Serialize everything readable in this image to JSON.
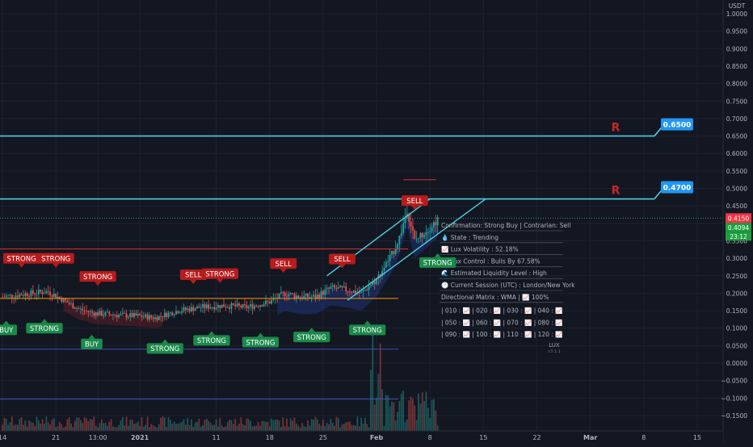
{
  "chart_data": {
    "type": "candlestick",
    "quote_unit": "USDT",
    "price_axis": {
      "min": -0.17,
      "max": 1.02,
      "ticks": [
        1.0,
        0.95,
        0.9,
        0.85,
        0.8,
        0.75,
        0.7,
        0.65,
        0.6,
        0.55,
        0.5,
        0.45,
        0.4,
        0.35,
        0.3,
        0.25,
        0.2,
        0.15,
        0.1,
        0.05,
        0.0,
        -0.05,
        -0.1,
        -0.15
      ],
      "tick_labels": [
        "1.0000",
        "0.9500",
        "0.9000",
        "0.8500",
        "0.8000",
        "0.7500",
        "0.7000",
        "0.6500",
        "0.6000",
        "0.5500",
        "0.5000",
        "0.4500",
        "0.4000",
        "0.3500",
        "0.3000",
        "0.2500",
        "0.2000",
        "0.1500",
        "0.1000",
        "0.0500",
        "0.0000",
        "−0.0500",
        "−0.1000",
        "−0.1500"
      ]
    },
    "time_axis": {
      "labels": [
        {
          "label": "14",
          "day": 0
        },
        {
          "label": "21",
          "day": 7
        },
        {
          "label": "13:00",
          "day": 12.5
        },
        {
          "label": "2021",
          "day": 18
        },
        {
          "label": "11",
          "day": 28
        },
        {
          "label": "18",
          "day": 35
        },
        {
          "label": "25",
          "day": 42
        },
        {
          "label": "Feb",
          "day": 49
        },
        {
          "label": "8",
          "day": 56
        },
        {
          "label": "15",
          "day": 63
        },
        {
          "label": "22",
          "day": 70
        },
        {
          "label": "Mar",
          "day": 77
        },
        {
          "label": "8",
          "day": 84
        },
        {
          "label": "15",
          "day": 91
        }
      ],
      "range": [
        0,
        99
      ]
    },
    "price_path": [
      [
        0,
        0.19
      ],
      [
        3,
        0.198
      ],
      [
        6,
        0.205
      ],
      [
        8,
        0.18
      ],
      [
        10,
        0.155
      ],
      [
        12,
        0.143
      ],
      [
        15,
        0.138
      ],
      [
        18,
        0.135
      ],
      [
        20,
        0.13
      ],
      [
        23,
        0.15
      ],
      [
        26,
        0.16
      ],
      [
        29,
        0.165
      ],
      [
        32,
        0.16
      ],
      [
        35,
        0.175
      ],
      [
        37,
        0.2
      ],
      [
        39,
        0.19
      ],
      [
        41,
        0.19
      ],
      [
        43,
        0.215
      ],
      [
        45,
        0.21
      ],
      [
        47,
        0.2
      ],
      [
        49,
        0.24
      ],
      [
        51,
        0.31
      ],
      [
        52,
        0.36
      ],
      [
        53,
        0.44
      ],
      [
        54,
        0.35
      ],
      [
        55,
        0.37
      ],
      [
        56,
        0.39
      ],
      [
        57,
        0.41
      ]
    ],
    "horizontal_levels": [
      {
        "price": 0.65,
        "color": "#4dd0e1",
        "label": "0.6500"
      },
      {
        "price": 0.47,
        "color": "#4dd0e1",
        "label": "0.4700"
      },
      {
        "price": 0.327,
        "color": "#d32f2f"
      },
      {
        "price": 0.185,
        "color": "#ff9800"
      },
      {
        "price": 0.04,
        "color": "#3f51b5"
      },
      {
        "price": -0.103,
        "color": "#3f51b5"
      }
    ],
    "resistance_marks": [
      "R",
      "R"
    ],
    "current_prices": [
      "0.4150",
      "0.4094"
    ],
    "countdown": "23:12",
    "signals": [
      {
        "type": "STRONG",
        "side": "sell",
        "day": 2.5,
        "price": 0.3
      },
      {
        "type": "STRONG",
        "side": "sell",
        "day": 7,
        "price": 0.3
      },
      {
        "type": "STRONG",
        "side": "sell",
        "day": 12.5,
        "price": 0.248
      },
      {
        "type": "SELL",
        "side": "sell",
        "day": 25,
        "price": 0.253
      },
      {
        "type": "STRONG",
        "side": "sell",
        "day": 28.5,
        "price": 0.256
      },
      {
        "type": "SELL",
        "side": "sell",
        "day": 36.8,
        "price": 0.285
      },
      {
        "type": "SELL",
        "side": "sell",
        "day": 44.5,
        "price": 0.298
      },
      {
        "type": "SELL",
        "side": "sell",
        "day": 54,
        "price": 0.465
      },
      {
        "type": "BUY",
        "side": "buy",
        "day": 0.5,
        "price": 0.095
      },
      {
        "type": "STRONG",
        "side": "buy",
        "day": 5.5,
        "price": 0.1
      },
      {
        "type": "BUY",
        "side": "buy",
        "day": 11.7,
        "price": 0.055
      },
      {
        "type": "STRONG",
        "side": "buy",
        "day": 21.3,
        "price": 0.042
      },
      {
        "type": "STRONG",
        "side": "buy",
        "day": 27.4,
        "price": 0.065
      },
      {
        "type": "STRONG",
        "side": "buy",
        "day": 33.8,
        "price": 0.06
      },
      {
        "type": "STRONG",
        "side": "buy",
        "day": 40.5,
        "price": 0.075
      },
      {
        "type": "STRONG",
        "side": "buy",
        "day": 47.8,
        "price": 0.095
      },
      {
        "type": "STRONG",
        "side": "buy",
        "day": 57,
        "price": 0.288
      }
    ],
    "dashboard": {
      "rows": [
        {
          "icon": "",
          "text": "Confirmation: Strong Buy | Contrarian: Sell"
        },
        {
          "icon": "💧",
          "text": "State : Trending"
        },
        {
          "icon": "📈",
          "text": "Lux Volatility : 52.18%"
        },
        {
          "icon": "📈",
          "text": "Lux Control : Bulls By 67.58%"
        },
        {
          "icon": "🌊",
          "text": "Estimated Liquidity Level : High"
        },
        {
          "icon": "🕐",
          "text": "Current Session (UTC) : London/New York"
        },
        {
          "icon": "",
          "text": "Directional Matrix : WMA | 📈 100%"
        }
      ],
      "matrix": [
        [
          "| 010 : 📈 | 020 : 📈 | 030 : 📈 | 040 : 📈"
        ],
        [
          "| 050 : 📈 | 060 : 📈 | 070 : 📈 | 080 : 📈"
        ],
        [
          "| 090 : 📈 | 100 : 📈 | 110 : 📈 | 120 : 📈"
        ]
      ],
      "logo_text": "LUX",
      "version": "v3.1.1"
    }
  }
}
